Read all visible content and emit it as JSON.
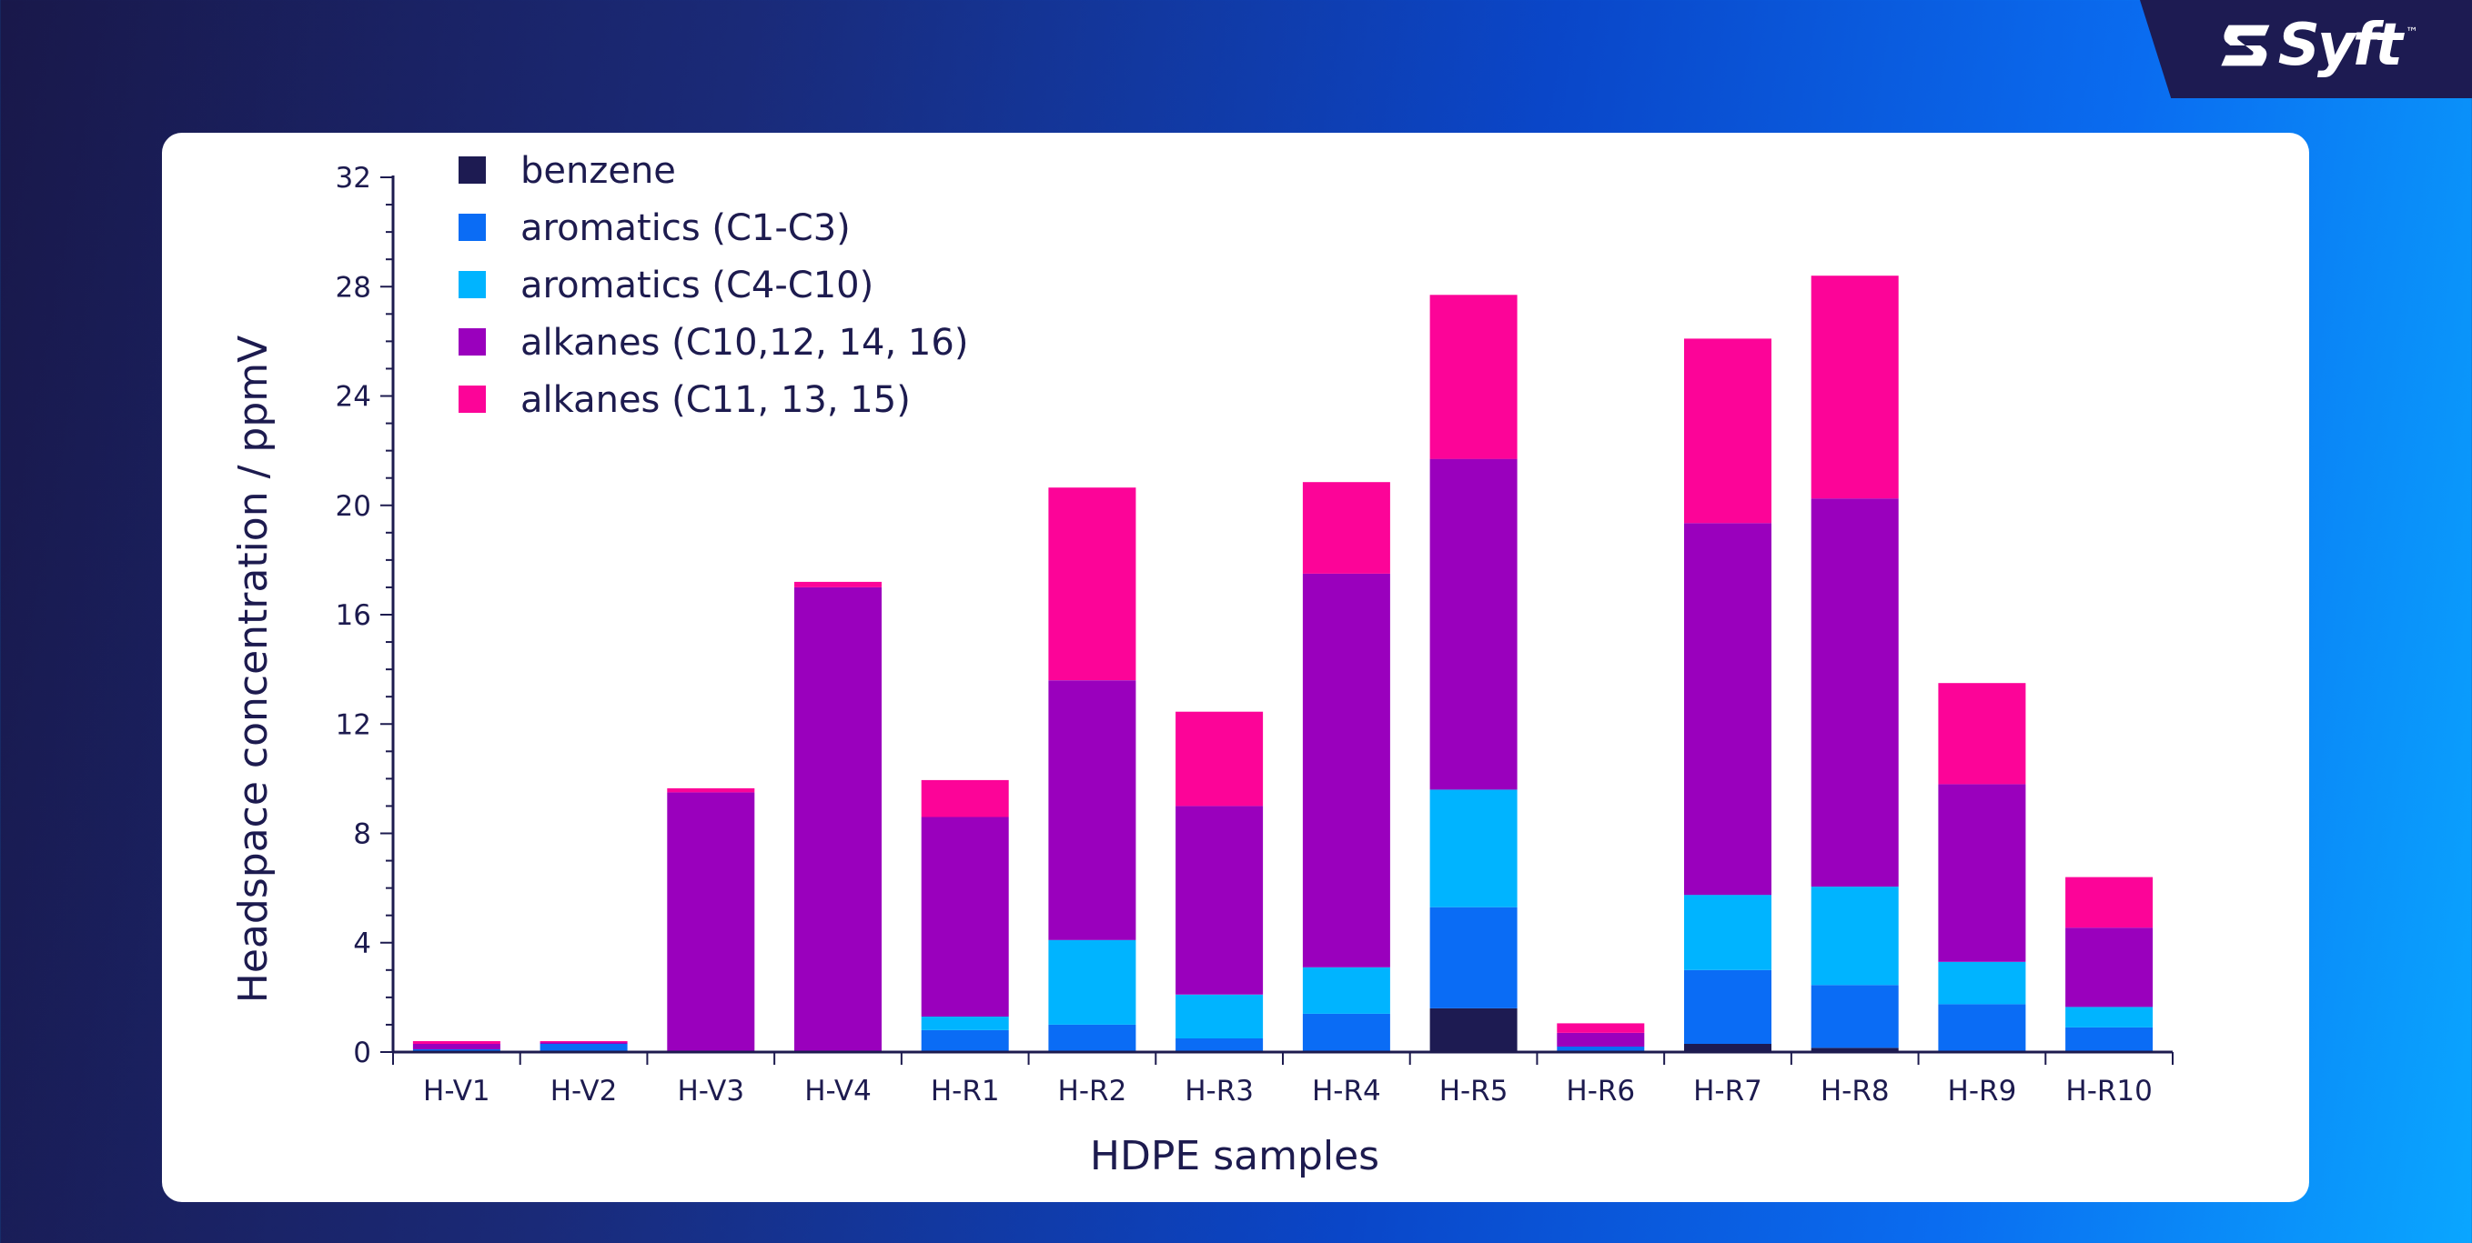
{
  "brand": {
    "name": "Syft",
    "tm": "™"
  },
  "chart_data": {
    "type": "bar",
    "stacked": true,
    "xlabel": "HDPE samples",
    "ylabel": "Headspace concentration / ppmV",
    "ylim": [
      0,
      32
    ],
    "yticks": [
      0,
      4,
      8,
      12,
      16,
      20,
      24,
      28,
      32
    ],
    "grid": false,
    "legend_position": "top-left",
    "categories": [
      "H-V1",
      "H-V2",
      "H-V3",
      "H-V4",
      "H-R1",
      "H-R2",
      "H-R3",
      "H-R4",
      "H-R5",
      "H-R6",
      "H-R7",
      "H-R8",
      "H-R9",
      "H-R10"
    ],
    "series": [
      {
        "name": "benzene",
        "color": "#1d1b52",
        "values": [
          0,
          0,
          0,
          0,
          0,
          0,
          0,
          0,
          1.6,
          0,
          0.3,
          0.15,
          0,
          0
        ]
      },
      {
        "name": "aromatics (C1-C3)",
        "color": "#0a6cf5",
        "values": [
          0.1,
          0.3,
          0,
          0,
          0.8,
          1.0,
          0.5,
          1.4,
          3.7,
          0.2,
          2.7,
          2.3,
          1.75,
          0.9
        ]
      },
      {
        "name": "aromatics (C4-C10)",
        "color": "#00b4ff",
        "values": [
          0,
          0,
          0,
          0,
          0.5,
          3.1,
          1.6,
          1.7,
          4.3,
          0,
          2.75,
          3.6,
          1.55,
          0.75
        ]
      },
      {
        "name": "alkanes (C10,12, 14, 16)",
        "color": "#9a00bd",
        "values": [
          0.2,
          0.05,
          9.5,
          17.0,
          7.3,
          9.5,
          6.9,
          14.4,
          12.1,
          0.5,
          13.6,
          14.2,
          6.5,
          2.9
        ]
      },
      {
        "name": "alkanes (C11, 13, 15)",
        "color": "#fc0498",
        "values": [
          0.1,
          0.05,
          0.15,
          0.2,
          1.35,
          7.05,
          3.45,
          3.35,
          6.0,
          0.35,
          6.75,
          8.15,
          3.7,
          1.85
        ]
      }
    ]
  }
}
